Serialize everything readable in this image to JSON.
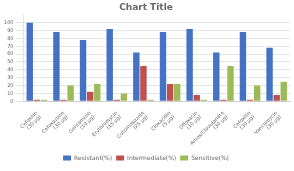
{
  "chart_data": {
    "type": "bar",
    "title": "Chart Title",
    "categories": [
      "Cefoxitin\n(30 µg)",
      "Cefoxazone\n(30 µg)",
      "Gentamicin\n(10 µg)",
      "Erythromycin\n(15 µg)",
      "Cotrimoxazole\n(25 µg)",
      "Cloxacillin\n(5 µg)",
      "Ofloxacin\n(10 µg)",
      "Amox/Clavulanate\n(30 µg)",
      "Cefoxitin\n(30 µg)",
      "Vancomycin\n(30 µg)"
    ],
    "series": [
      {
        "name": "Resistant(%)",
        "color": "#4472C4",
        "values": [
          100,
          88,
          78,
          92,
          62,
          88,
          92,
          62,
          88,
          68
        ]
      },
      {
        "name": "Intermediate(%)",
        "color": "#C0504D",
        "values": [
          2,
          2,
          12,
          2,
          45,
          22,
          8,
          2,
          2,
          8
        ]
      },
      {
        "name": "Sensitive(%)",
        "color": "#9BBB59",
        "values": [
          2,
          20,
          22,
          10,
          2,
          22,
          2,
          45,
          20,
          25
        ]
      }
    ],
    "ylim": [
      0,
      110
    ],
    "yticks": [
      0,
      10,
      20,
      30,
      40,
      50,
      60,
      70,
      80,
      90,
      100
    ],
    "grid": true,
    "legend": "bottom"
  }
}
